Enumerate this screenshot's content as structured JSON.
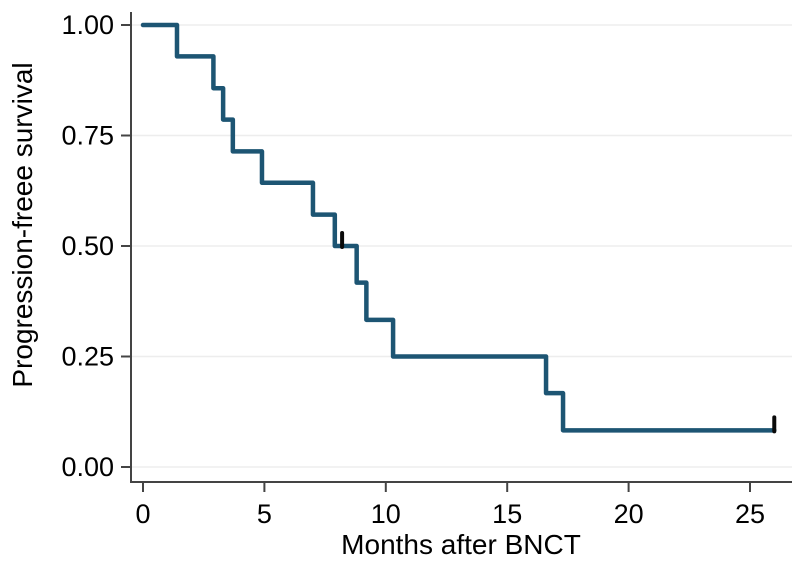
{
  "chart_data": {
    "type": "line",
    "subtype": "kaplan-meier-step",
    "title": "",
    "xlabel": "Months after BNCT",
    "ylabel": "Progression-freee survival",
    "xlim": [
      0,
      26.7
    ],
    "ylim": [
      0.0,
      1.0
    ],
    "grid": "horizontal",
    "legend": "none",
    "x_ticks": [
      {
        "value": 0,
        "label": "0"
      },
      {
        "value": 5,
        "label": "5"
      },
      {
        "value": 10,
        "label": "10"
      },
      {
        "value": 15,
        "label": "15"
      },
      {
        "value": 20,
        "label": "20"
      },
      {
        "value": 25,
        "label": "25"
      }
    ],
    "y_ticks": [
      {
        "value": 1.0,
        "label": "1.00"
      },
      {
        "value": 0.75,
        "label": "0.75"
      },
      {
        "value": 0.5,
        "label": "0.50"
      },
      {
        "value": 0.25,
        "label": "0.25"
      },
      {
        "value": 0.0,
        "label": "0.00"
      }
    ],
    "series": [
      {
        "name": "Progression-free survival",
        "color": "#1d5573",
        "steps": [
          {
            "t": 0.0,
            "s": 1.0
          },
          {
            "t": 1.4,
            "s": 0.929
          },
          {
            "t": 2.9,
            "s": 0.857
          },
          {
            "t": 3.3,
            "s": 0.786
          },
          {
            "t": 3.7,
            "s": 0.714
          },
          {
            "t": 4.9,
            "s": 0.643
          },
          {
            "t": 7.0,
            "s": 0.571
          },
          {
            "t": 7.9,
            "s": 0.5
          },
          {
            "t": 8.8,
            "s": 0.417
          },
          {
            "t": 9.2,
            "s": 0.333
          },
          {
            "t": 10.3,
            "s": 0.25
          },
          {
            "t": 16.6,
            "s": 0.167
          },
          {
            "t": 17.3,
            "s": 0.083
          }
        ],
        "end_t": 26.0,
        "censored": [
          {
            "t": 8.2,
            "s": 0.5
          },
          {
            "t": 26.0,
            "s": 0.083
          }
        ]
      }
    ],
    "colors": {
      "curve": "#1d5573",
      "censor_mark": "#0a0a0a",
      "axis": "#444444",
      "gridline": "#ededed",
      "text": "#000000",
      "background": "#ffffff"
    }
  }
}
